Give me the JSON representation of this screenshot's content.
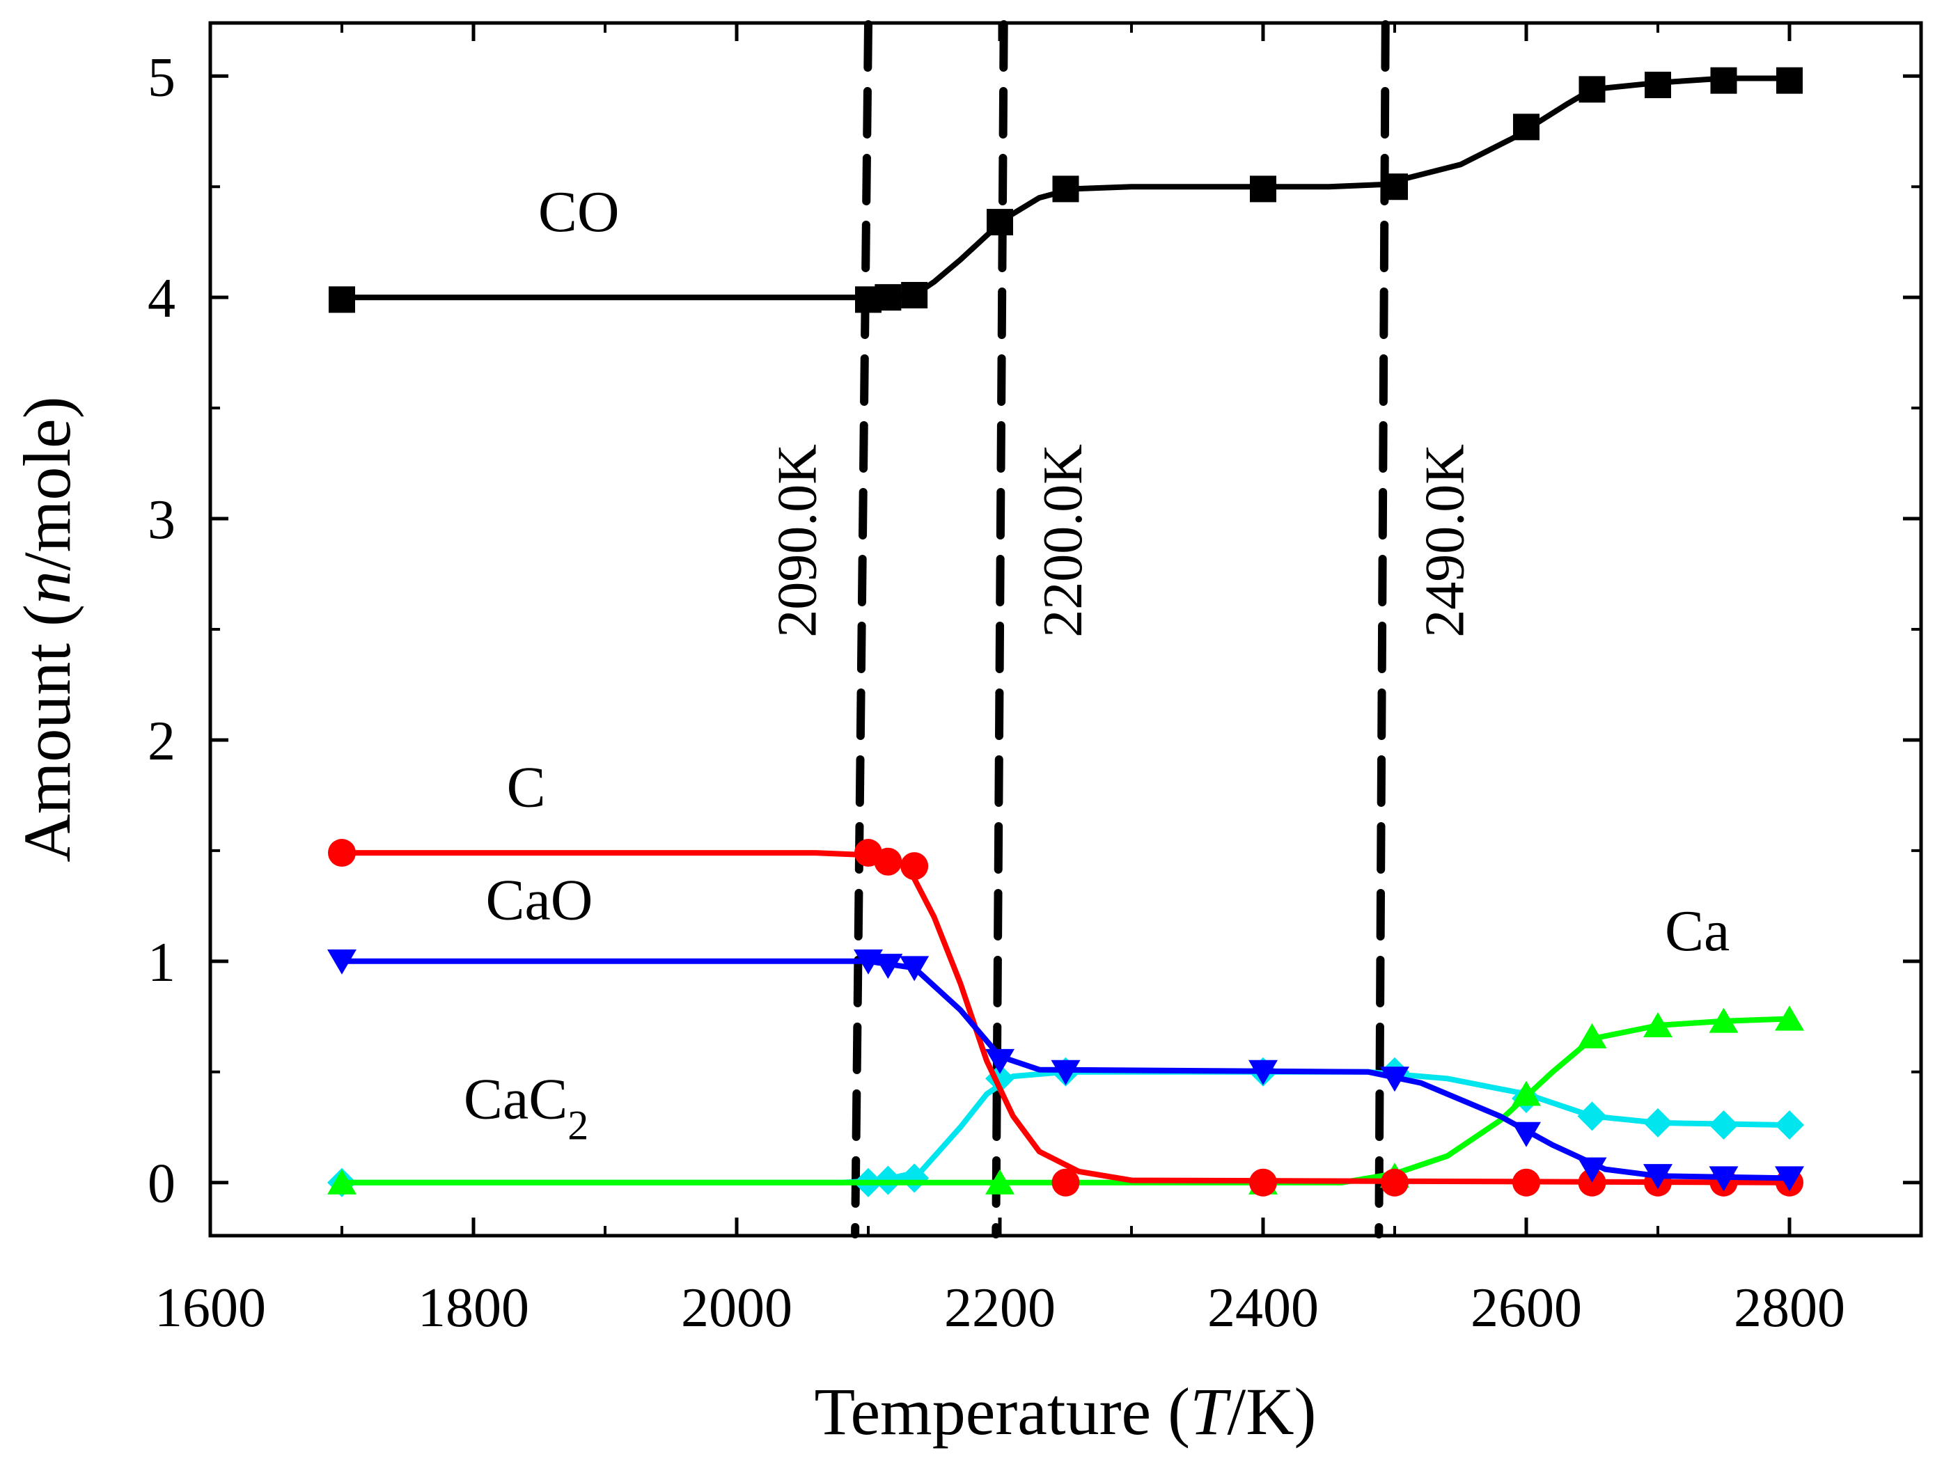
{
  "chart_data": {
    "type": "line",
    "title": "",
    "xlabel": {
      "pre": "Temperature (",
      "var": "T",
      "post": "/K)"
    },
    "ylabel": {
      "pre": "Amount (",
      "var": "n",
      "post": "/mole)"
    },
    "xlim": [
      1600,
      2900
    ],
    "ylim": [
      -0.24,
      5.24
    ],
    "xticks": [
      1600,
      1800,
      2000,
      2200,
      2400,
      2600,
      2800
    ],
    "yticks": [
      0,
      1,
      2,
      3,
      4,
      5
    ],
    "grid": false,
    "series": [
      {
        "name": "CO",
        "label": "CO",
        "sub": "",
        "color": "#000000",
        "marker": "square",
        "label_pos": [
          1880,
          4.3
        ],
        "line": [
          [
            1700,
            4.0
          ],
          [
            2085,
            4.0
          ],
          [
            2105,
            4.0
          ],
          [
            2135,
            4.01
          ],
          [
            2150,
            4.07
          ],
          [
            2170,
            4.17
          ],
          [
            2190,
            4.28
          ],
          [
            2205,
            4.36
          ],
          [
            2230,
            4.45
          ],
          [
            2255,
            4.49
          ],
          [
            2300,
            4.5
          ],
          [
            2450,
            4.5
          ],
          [
            2490,
            4.51
          ],
          [
            2510,
            4.54
          ],
          [
            2550,
            4.6
          ],
          [
            2590,
            4.72
          ],
          [
            2630,
            4.87
          ],
          [
            2650,
            4.94
          ],
          [
            2700,
            4.97
          ],
          [
            2750,
            4.99
          ],
          [
            2800,
            4.99
          ]
        ],
        "markers": [
          [
            1700,
            3.99
          ],
          [
            2100,
            3.99
          ],
          [
            2115,
            4.0
          ],
          [
            2135,
            4.01
          ],
          [
            2200,
            4.34
          ],
          [
            2250,
            4.49
          ],
          [
            2400,
            4.49
          ],
          [
            2500,
            4.5
          ],
          [
            2600,
            4.77
          ],
          [
            2650,
            4.94
          ],
          [
            2700,
            4.96
          ],
          [
            2750,
            4.98
          ],
          [
            2800,
            4.98
          ]
        ]
      },
      {
        "name": "C",
        "label": "C",
        "sub": "",
        "color": "#ff0000",
        "marker": "circle",
        "label_pos": [
          1840,
          1.7
        ],
        "line": [
          [
            1700,
            1.49
          ],
          [
            2060,
            1.49
          ],
          [
            2100,
            1.48
          ],
          [
            2130,
            1.43
          ],
          [
            2150,
            1.2
          ],
          [
            2170,
            0.9
          ],
          [
            2190,
            0.55
          ],
          [
            2210,
            0.3
          ],
          [
            2230,
            0.14
          ],
          [
            2260,
            0.05
          ],
          [
            2300,
            0.01
          ],
          [
            2800,
            0.0
          ]
        ],
        "markers": [
          [
            1700,
            1.49
          ],
          [
            2100,
            1.49
          ],
          [
            2115,
            1.45
          ],
          [
            2135,
            1.43
          ],
          [
            2250,
            0.0
          ],
          [
            2400,
            0.0
          ],
          [
            2500,
            0.0
          ],
          [
            2600,
            0.0
          ],
          [
            2650,
            0.0
          ],
          [
            2700,
            0.0
          ],
          [
            2750,
            0.0
          ],
          [
            2800,
            0.0
          ]
        ]
      },
      {
        "name": "CaO",
        "label": "CaO",
        "sub": "",
        "color": "#0000ff",
        "marker": "triangle-down",
        "label_pos": [
          1850,
          1.19
        ],
        "line": [
          [
            1700,
            1.0
          ],
          [
            2100,
            1.0
          ],
          [
            2135,
            0.97
          ],
          [
            2170,
            0.78
          ],
          [
            2200,
            0.57
          ],
          [
            2230,
            0.51
          ],
          [
            2480,
            0.5
          ],
          [
            2520,
            0.45
          ],
          [
            2580,
            0.3
          ],
          [
            2620,
            0.17
          ],
          [
            2660,
            0.06
          ],
          [
            2700,
            0.03
          ],
          [
            2800,
            0.02
          ]
        ],
        "markers": [
          [
            1700,
            1.0
          ],
          [
            2100,
            1.0
          ],
          [
            2115,
            0.98
          ],
          [
            2135,
            0.97
          ],
          [
            2200,
            0.55
          ],
          [
            2250,
            0.5
          ],
          [
            2400,
            0.5
          ],
          [
            2500,
            0.47
          ],
          [
            2600,
            0.22
          ],
          [
            2650,
            0.06
          ],
          [
            2700,
            0.03
          ],
          [
            2750,
            0.02
          ],
          [
            2800,
            0.02
          ]
        ]
      },
      {
        "name": "CaC2",
        "label": "CaC",
        "sub": "2",
        "color": "#00e5ee",
        "marker": "diamond",
        "label_pos": [
          1840,
          0.29
        ],
        "line": [
          [
            1700,
            0.0
          ],
          [
            2080,
            0.0
          ],
          [
            2110,
            0.01
          ],
          [
            2140,
            0.05
          ],
          [
            2170,
            0.25
          ],
          [
            2190,
            0.4
          ],
          [
            2210,
            0.48
          ],
          [
            2250,
            0.5
          ],
          [
            2480,
            0.5
          ],
          [
            2540,
            0.47
          ],
          [
            2600,
            0.4
          ],
          [
            2650,
            0.3
          ],
          [
            2700,
            0.27
          ],
          [
            2800,
            0.26
          ]
        ],
        "markers": [
          [
            1700,
            0.0
          ],
          [
            2100,
            0.0
          ],
          [
            2115,
            0.01
          ],
          [
            2135,
            0.02
          ],
          [
            2200,
            0.47
          ],
          [
            2250,
            0.5
          ],
          [
            2400,
            0.5
          ],
          [
            2500,
            0.5
          ],
          [
            2600,
            0.38
          ],
          [
            2650,
            0.3
          ],
          [
            2700,
            0.27
          ],
          [
            2750,
            0.26
          ],
          [
            2800,
            0.26
          ]
        ]
      },
      {
        "name": "Ca",
        "label": "Ca",
        "sub": "",
        "color": "#00ff00",
        "marker": "triangle-up",
        "label_pos": [
          2730,
          1.05
        ],
        "line": [
          [
            1700,
            0.0
          ],
          [
            2460,
            0.0
          ],
          [
            2500,
            0.04
          ],
          [
            2540,
            0.12
          ],
          [
            2580,
            0.28
          ],
          [
            2620,
            0.5
          ],
          [
            2650,
            0.65
          ],
          [
            2700,
            0.71
          ],
          [
            2750,
            0.73
          ],
          [
            2800,
            0.74
          ]
        ],
        "markers": [
          [
            1700,
            0.0
          ],
          [
            2200,
            0.0
          ],
          [
            2400,
            0.0
          ],
          [
            2500,
            0.03
          ],
          [
            2600,
            0.4
          ],
          [
            2650,
            0.66
          ],
          [
            2700,
            0.71
          ],
          [
            2750,
            0.73
          ],
          [
            2800,
            0.74
          ]
        ]
      }
    ],
    "vlines": [
      {
        "label": "2090.0K",
        "top": [
          2100,
          5.24
        ],
        "bottom": [
          2090,
          -0.24
        ],
        "label_at": [
          2060,
          2.9
        ]
      },
      {
        "label": "2200.0K",
        "top": [
          2203,
          5.24
        ],
        "bottom": [
          2197,
          -0.24
        ],
        "label_at": [
          2262,
          2.9
        ]
      },
      {
        "label": "2490.0K",
        "top": [
          2493,
          5.24
        ],
        "bottom": [
          2488,
          -0.24
        ],
        "label_at": [
          2552,
          2.9
        ]
      }
    ]
  }
}
